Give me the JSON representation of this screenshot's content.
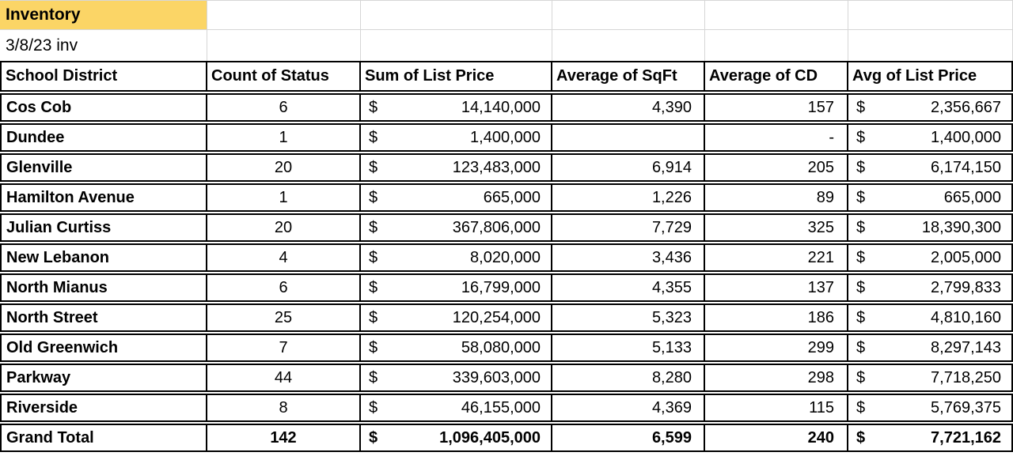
{
  "title_block": {
    "title": "Inventory",
    "subtitle": "3/8/23 inv"
  },
  "colors": {
    "title_bg": "#FBD566",
    "grid_line": "#D6D6D6",
    "table_border": "#000000"
  },
  "table": {
    "currency_symbol": "$",
    "headers": [
      "School District",
      "Count of Status",
      "Sum of List Price",
      "Average of SqFt",
      "Average of CD",
      "Avg of List Price"
    ],
    "rows": [
      {
        "district": "Cos Cob",
        "count": "6",
        "sum": "14,140,000",
        "sqft": "4,390",
        "cd": "157",
        "avg": "2,356,667"
      },
      {
        "district": "Dundee",
        "count": "1",
        "sum": "1,400,000",
        "sqft": "",
        "cd": "-",
        "avg": "1,400,000"
      },
      {
        "district": "Glenville",
        "count": "20",
        "sum": "123,483,000",
        "sqft": "6,914",
        "cd": "205",
        "avg": "6,174,150"
      },
      {
        "district": "Hamilton Avenue",
        "count": "1",
        "sum": "665,000",
        "sqft": "1,226",
        "cd": "89",
        "avg": "665,000"
      },
      {
        "district": "Julian Curtiss",
        "count": "20",
        "sum": "367,806,000",
        "sqft": "7,729",
        "cd": "325",
        "avg": "18,390,300"
      },
      {
        "district": "New Lebanon",
        "count": "4",
        "sum": "8,020,000",
        "sqft": "3,436",
        "cd": "221",
        "avg": "2,005,000"
      },
      {
        "district": "North Mianus",
        "count": "6",
        "sum": "16,799,000",
        "sqft": "4,355",
        "cd": "137",
        "avg": "2,799,833"
      },
      {
        "district": "North Street",
        "count": "25",
        "sum": "120,254,000",
        "sqft": "5,323",
        "cd": "186",
        "avg": "4,810,160"
      },
      {
        "district": "Old Greenwich",
        "count": "7",
        "sum": "58,080,000",
        "sqft": "5,133",
        "cd": "299",
        "avg": "8,297,143"
      },
      {
        "district": "Parkway",
        "count": "44",
        "sum": "339,603,000",
        "sqft": "8,280",
        "cd": "298",
        "avg": "7,718,250"
      },
      {
        "district": "Riverside",
        "count": "8",
        "sum": "46,155,000",
        "sqft": "4,369",
        "cd": "115",
        "avg": "5,769,375"
      }
    ],
    "grand_total": {
      "district": "Grand Total",
      "count": "142",
      "sum": "1,096,405,000",
      "sqft": "6,599",
      "cd": "240",
      "avg": "7,721,162"
    }
  }
}
